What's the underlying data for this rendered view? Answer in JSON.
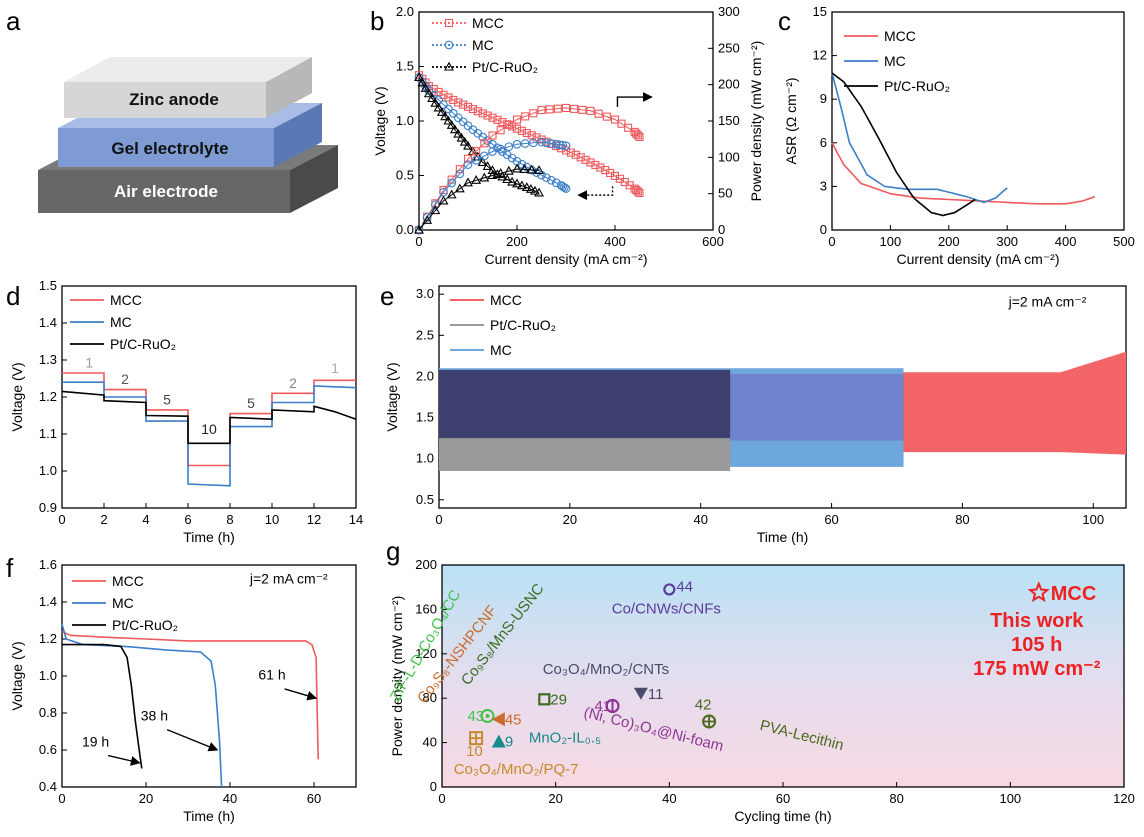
{
  "panel_letters": [
    "a",
    "b",
    "c",
    "d",
    "e",
    "f",
    "g"
  ],
  "schematic": {
    "layers": [
      "Zinc anode",
      "Gel electrolyte",
      "Air electrode"
    ],
    "colors": [
      "#d6d6d6",
      "#7e9bd3",
      "#666666"
    ]
  },
  "colors": {
    "MCC": "#f0595c",
    "MC": "#3a7fc8",
    "Pt/C-RuO2": "#000000"
  },
  "chart_data": [
    {
      "panel": "b",
      "type": "line",
      "xlabel": "Current density (mA cm⁻²)",
      "ylabel": "Voltage (V)",
      "y2label": "Power density (mW cm⁻²)",
      "xlim": [
        0,
        600
      ],
      "ylim": [
        0,
        2.0
      ],
      "y2lim": [
        0,
        300
      ],
      "xticks": [
        0,
        200,
        400,
        600
      ],
      "yticks": [
        0.0,
        0.5,
        1.0,
        1.5,
        2.0
      ],
      "y2ticks": [
        0,
        50,
        100,
        150,
        200,
        250,
        300
      ],
      "legend": [
        "MCC",
        "MC",
        "Pt/C-RuO₂"
      ],
      "series": [
        {
          "name": "MCC",
          "axis": "left",
          "x": [
            0,
            20,
            50,
            80,
            110,
            140,
            170,
            200,
            230,
            260,
            290,
            320,
            350,
            380,
            410,
            440,
            450
          ],
          "y": [
            1.42,
            1.32,
            1.24,
            1.17,
            1.11,
            1.05,
            0.99,
            0.93,
            0.87,
            0.81,
            0.75,
            0.69,
            0.62,
            0.55,
            0.47,
            0.38,
            0.34
          ]
        },
        {
          "name": "MC",
          "axis": "left",
          "x": [
            0,
            20,
            50,
            80,
            110,
            140,
            170,
            200,
            230,
            260,
            290,
            300
          ],
          "y": [
            1.4,
            1.28,
            1.15,
            1.03,
            0.92,
            0.82,
            0.72,
            0.63,
            0.55,
            0.48,
            0.41,
            0.38
          ]
        },
        {
          "name": "Pt/C-RuO2",
          "axis": "left",
          "x": [
            0,
            20,
            40,
            60,
            80,
            100,
            130,
            160,
            190,
            220,
            245
          ],
          "y": [
            1.4,
            1.25,
            1.12,
            1.0,
            0.88,
            0.77,
            0.62,
            0.51,
            0.44,
            0.39,
            0.34
          ]
        },
        {
          "name": "MCC",
          "axis": "right",
          "x": [
            0,
            50,
            100,
            150,
            200,
            250,
            300,
            350,
            400,
            440,
            450
          ],
          "y": [
            0,
            55,
            98,
            130,
            152,
            165,
            168,
            164,
            152,
            135,
            128
          ]
        },
        {
          "name": "MC",
          "axis": "right",
          "x": [
            0,
            50,
            100,
            150,
            200,
            250,
            280,
            300
          ],
          "y": [
            0,
            52,
            90,
            108,
            118,
            121,
            118,
            116
          ]
        },
        {
          "name": "Pt/C-RuO2",
          "axis": "right",
          "x": [
            0,
            50,
            100,
            150,
            200,
            245
          ],
          "y": [
            0,
            40,
            65,
            75,
            84,
            82
          ]
        }
      ],
      "annotations": [
        "arrow → power density (right axis)",
        "arrow ← voltage (left axis)"
      ]
    },
    {
      "panel": "c",
      "type": "line",
      "xlabel": "Current density (mA cm⁻²)",
      "ylabel": "ASR (Ω cm⁻²)",
      "xlim": [
        0,
        500
      ],
      "ylim": [
        0,
        15
      ],
      "xticks": [
        0,
        100,
        200,
        300,
        400,
        500
      ],
      "yticks": [
        0,
        3,
        6,
        9,
        12,
        15
      ],
      "legend": [
        "MCC",
        "MC",
        "Pt/C-RuO₂"
      ],
      "series": [
        {
          "name": "MCC",
          "x": [
            0,
            20,
            50,
            100,
            150,
            200,
            250,
            300,
            350,
            400,
            430,
            450
          ],
          "y": [
            6.0,
            4.5,
            3.2,
            2.5,
            2.2,
            2.1,
            2.0,
            1.9,
            1.8,
            1.8,
            2.0,
            2.3
          ]
        },
        {
          "name": "MC",
          "x": [
            0,
            15,
            30,
            60,
            90,
            130,
            180,
            230,
            260,
            280,
            300
          ],
          "y": [
            10.8,
            8.5,
            6.0,
            3.8,
            3.0,
            2.8,
            2.8,
            2.3,
            1.9,
            2.2,
            2.9
          ]
        },
        {
          "name": "Pt/C-RuO2",
          "x": [
            0,
            20,
            50,
            80,
            110,
            140,
            170,
            190,
            210,
            230,
            245
          ],
          "y": [
            10.8,
            10.2,
            8.5,
            6.3,
            4.0,
            2.2,
            1.2,
            1.0,
            1.2,
            1.7,
            2.1
          ]
        }
      ]
    },
    {
      "panel": "d",
      "type": "line",
      "xlabel": "Time (h)",
      "ylabel": "Voltage (V)",
      "xlim": [
        0,
        14
      ],
      "ylim": [
        0.9,
        1.5
      ],
      "xticks": [
        0,
        2,
        4,
        6,
        8,
        10,
        12,
        14
      ],
      "yticks": [
        0.9,
        1.0,
        1.1,
        1.2,
        1.3,
        1.4,
        1.5
      ],
      "legend": [
        "MCC",
        "MC",
        "Pt/C-RuO₂"
      ],
      "step_labels": [
        "1",
        "2",
        "5",
        "10",
        "5",
        "2",
        "1"
      ],
      "series": [
        {
          "name": "MCC",
          "x": [
            0,
            2,
            2,
            4,
            4,
            6,
            6,
            8,
            8,
            10,
            10,
            12,
            12,
            14
          ],
          "y": [
            1.265,
            1.265,
            1.22,
            1.22,
            1.165,
            1.165,
            1.015,
            1.015,
            1.155,
            1.155,
            1.21,
            1.21,
            1.245,
            1.245
          ]
        },
        {
          "name": "MC",
          "x": [
            0,
            2,
            2,
            4,
            4,
            6,
            6,
            8,
            8,
            10,
            10,
            12,
            12,
            14
          ],
          "y": [
            1.24,
            1.24,
            1.2,
            1.2,
            1.135,
            1.135,
            0.965,
            0.96,
            1.12,
            1.12,
            1.185,
            1.185,
            1.23,
            1.225
          ]
        },
        {
          "name": "Pt/C-RuO2",
          "x": [
            0,
            2,
            2,
            4,
            4,
            6,
            6,
            8,
            8,
            10,
            10,
            12,
            12,
            13,
            14
          ],
          "y": [
            1.215,
            1.205,
            1.19,
            1.185,
            1.15,
            1.148,
            1.075,
            1.075,
            1.145,
            1.14,
            1.165,
            1.16,
            1.175,
            1.16,
            1.14
          ]
        }
      ]
    },
    {
      "panel": "e",
      "type": "area",
      "xlabel": "Time (h)",
      "ylabel": "Voltage (V)",
      "xlim": [
        0,
        105
      ],
      "ylim": [
        0.4,
        3.1
      ],
      "xticks": [
        0,
        20,
        40,
        60,
        80,
        100
      ],
      "yticks": [
        0.5,
        1.0,
        1.5,
        2.0,
        2.5,
        3.0
      ],
      "annotation": "j=2 mA cm⁻²",
      "legend": [
        "MCC",
        "Pt/C-RuO₂",
        "MC"
      ],
      "series": [
        {
          "name": "MCC",
          "x_end": 105,
          "upper": [
            2.05,
            2.05,
            2.3
          ],
          "lower": [
            1.08,
            1.08,
            1.05
          ]
        },
        {
          "name": "MC",
          "x_end": 71,
          "upper": [
            2.1,
            2.1
          ],
          "lower": [
            0.9,
            0.9
          ]
        },
        {
          "name": "Pt/C-RuO2",
          "x_end": 44.5,
          "upper": [
            2.08,
            2.1
          ],
          "lower": [
            0.85,
            0.85
          ]
        }
      ]
    },
    {
      "panel": "f",
      "type": "line",
      "xlabel": "Time (h)",
      "ylabel": "Voltage (V)",
      "xlim": [
        0,
        70
      ],
      "ylim": [
        0.4,
        1.6
      ],
      "xticks": [
        0,
        20,
        40,
        60
      ],
      "yticks": [
        0.4,
        0.6,
        0.8,
        1.0,
        1.2,
        1.4,
        1.6
      ],
      "annotation": "j=2 mA cm⁻²",
      "legend": [
        "MCC",
        "MC",
        "Pt/C-RuO₂"
      ],
      "end_labels": [
        "19 h",
        "38 h",
        "61 h"
      ],
      "series": [
        {
          "name": "MCC",
          "x": [
            0,
            2,
            10,
            20,
            30,
            40,
            50,
            58,
            59.5,
            60.5,
            61
          ],
          "y": [
            1.24,
            1.22,
            1.21,
            1.2,
            1.19,
            1.19,
            1.19,
            1.19,
            1.17,
            1.1,
            0.55
          ]
        },
        {
          "name": "MC",
          "x": [
            0,
            1,
            5,
            15,
            25,
            33,
            35.5,
            36.5,
            37.5,
            38
          ],
          "y": [
            1.28,
            1.2,
            1.17,
            1.16,
            1.14,
            1.13,
            1.08,
            0.95,
            0.65,
            0.4
          ]
        },
        {
          "name": "Pt/C-RuO2",
          "x": [
            0,
            5,
            10,
            14,
            15.5,
            16.5,
            17.5,
            18.5,
            19
          ],
          "y": [
            1.17,
            1.17,
            1.17,
            1.16,
            1.1,
            0.95,
            0.75,
            0.58,
            0.5
          ]
        }
      ]
    },
    {
      "panel": "g",
      "type": "scatter",
      "xlabel": "Cycling time (h)",
      "ylabel": "Power density (mW cm⁻²)",
      "xlim": [
        0,
        120
      ],
      "ylim": [
        0,
        200
      ],
      "xticks": [
        0,
        20,
        40,
        60,
        80,
        100,
        120
      ],
      "yticks": [
        0,
        40,
        80,
        120,
        160,
        200
      ],
      "points": [
        {
          "ref": "44",
          "label": "Co/CNWs/CNFs",
          "x": 40,
          "y": 178,
          "color": "#5b3a9a",
          "marker": "circle-open"
        },
        {
          "ref": "11",
          "label": "Co₃O₄/MnO₂/CNTs",
          "x": 35,
          "y": 84,
          "color": "#4a4a6a",
          "marker": "triangle-down"
        },
        {
          "ref": "29",
          "label": "Co₉S₈/MnS-USNC",
          "x": 18,
          "y": 79,
          "color": "#3d6b20",
          "marker": "square-open"
        },
        {
          "ref": "41",
          "label": "(Ni, Co)₃O₄@Ni-foam",
          "x": 30,
          "y": 73,
          "color": "#8e3596",
          "marker": "circle-bar"
        },
        {
          "ref": "42",
          "label": "PVA-Lecithin",
          "x": 47,
          "y": 59,
          "color": "#4c6a1e",
          "marker": "circle-plus"
        },
        {
          "ref": "43",
          "label": "ZIF-L-D-Co₃O₄/CC",
          "x": 8,
          "y": 64,
          "color": "#43c04a",
          "marker": "circle-dot"
        },
        {
          "ref": "45",
          "label": "Co₉S₈-NSHPCNF",
          "x": 10,
          "y": 61,
          "color": "#cc6b2a",
          "marker": "triangle-left"
        },
        {
          "ref": "9",
          "label": "MnO₂-IL₀.₅",
          "x": 10,
          "y": 41,
          "color": "#178a8a",
          "marker": "triangle-up"
        },
        {
          "ref": "10",
          "label": "Co₃O₄/MnO₂/PQ-7",
          "x": 6,
          "y": 44,
          "color": "#c48a2a",
          "marker": "square-plus"
        }
      ],
      "highlight": {
        "label": "MCC",
        "lines": [
          "This work",
          "105 h",
          "175 mW cm⁻²"
        ],
        "x": 105,
        "y": 175,
        "color": "#ee2222",
        "marker": "star-open"
      }
    }
  ]
}
